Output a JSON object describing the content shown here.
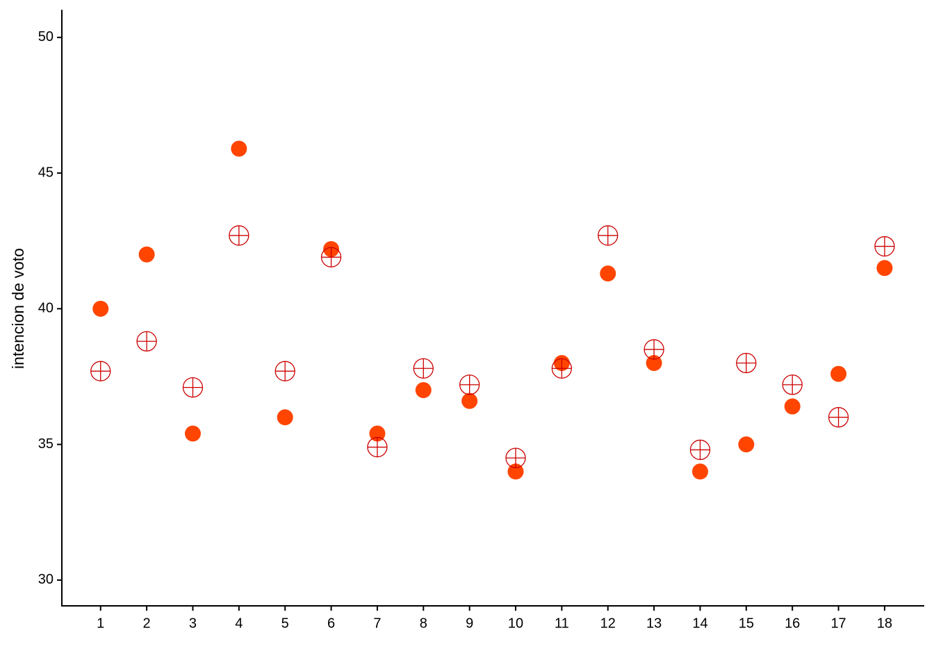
{
  "chart_data": {
    "type": "scatter",
    "y_label": "intencion de voto",
    "x": [
      1,
      2,
      3,
      4,
      5,
      6,
      7,
      8,
      9,
      10,
      11,
      12,
      13,
      14,
      15,
      16,
      17,
      18
    ],
    "xlim": [
      0.16,
      18.86
    ],
    "xticks": [
      1,
      2,
      3,
      4,
      5,
      6,
      7,
      8,
      9,
      10,
      11,
      12,
      13,
      14,
      15,
      16,
      17,
      18
    ],
    "ylim": [
      29.05,
      51.02
    ],
    "yticks": [
      30,
      35,
      40,
      45,
      50
    ],
    "grid": false,
    "series": [
      {
        "color": "#ff4500",
        "marker": "filled-circle",
        "values": [
          40,
          42,
          35.4,
          45.9,
          36,
          42.2,
          35.4,
          37,
          36.6,
          34,
          38,
          41.3,
          38,
          34,
          35,
          36.4,
          37.6,
          41.5
        ]
      },
      {
        "color": "#cc0000",
        "marker": "crossed-circle",
        "values": [
          37.7,
          38.8,
          37.1,
          42.7,
          37.7,
          41.9,
          34.9,
          37.8,
          37.2,
          34.5,
          37.8,
          42.7,
          38.5,
          34.8,
          38,
          37.2,
          36,
          42.3
        ]
      }
    ]
  }
}
